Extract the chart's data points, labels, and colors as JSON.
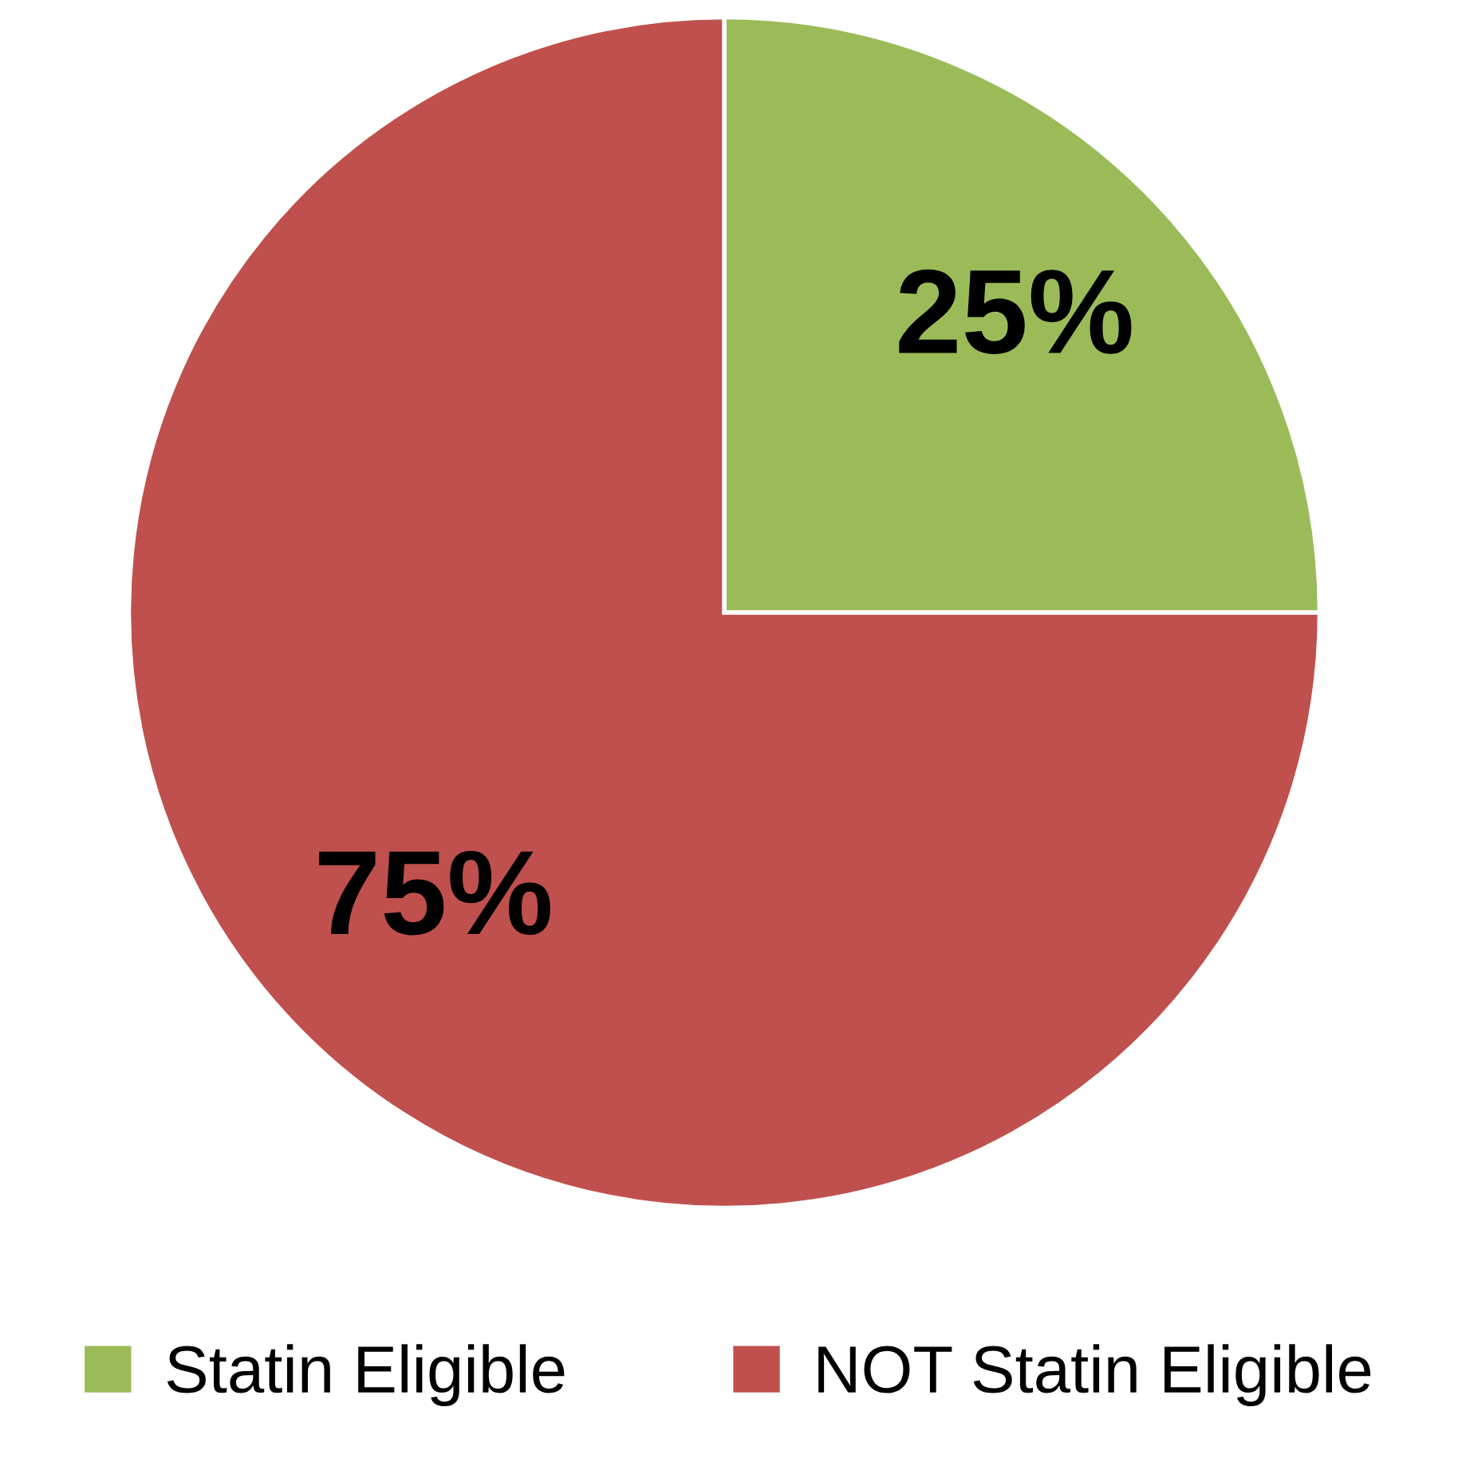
{
  "chart_data": {
    "type": "pie",
    "categories": [
      "Statin Eligible",
      "NOT Statin Eligible"
    ],
    "values": [
      25,
      75
    ],
    "colors": [
      "#9bbb59",
      "#c0504d"
    ],
    "value_labels": [
      "25%",
      "75%"
    ],
    "legend": "bottom"
  }
}
